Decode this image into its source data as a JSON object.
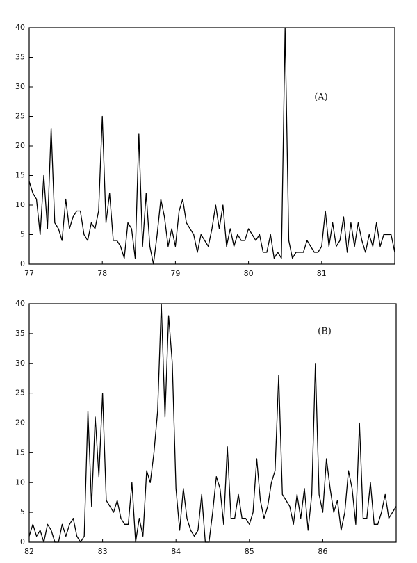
{
  "chart_data": [
    {
      "type": "line",
      "annotation": "(A)",
      "color": "#000000",
      "xlim": [
        77,
        82
      ],
      "xticks": [
        77,
        78,
        79,
        80,
        81
      ],
      "ylim": [
        0,
        40
      ],
      "yticks": [
        0,
        5,
        10,
        15,
        20,
        25,
        30,
        35,
        40
      ],
      "x": [
        77.0,
        77.05,
        77.1,
        77.15,
        77.2,
        77.25,
        77.3,
        77.35,
        77.4,
        77.45,
        77.5,
        77.55,
        77.6,
        77.65,
        77.7,
        77.75,
        77.8,
        77.85,
        77.9,
        77.95,
        78.0,
        78.05,
        78.1,
        78.15,
        78.2,
        78.25,
        78.3,
        78.35,
        78.4,
        78.45,
        78.5,
        78.55,
        78.6,
        78.65,
        78.7,
        78.75,
        78.8,
        78.85,
        78.9,
        78.95,
        79.0,
        79.05,
        79.1,
        79.15,
        79.2,
        79.25,
        79.3,
        79.35,
        79.4,
        79.45,
        79.5,
        79.55,
        79.6,
        79.65,
        79.7,
        79.75,
        79.8,
        79.85,
        79.9,
        79.95,
        80.0,
        80.05,
        80.1,
        80.15,
        80.2,
        80.25,
        80.3,
        80.35,
        80.4,
        80.45,
        80.5,
        80.55,
        80.6,
        80.65,
        80.7,
        80.75,
        80.8,
        80.85,
        80.9,
        80.95,
        81.0,
        81.05,
        81.1,
        81.15,
        81.2,
        81.25,
        81.3,
        81.35,
        81.4,
        81.45,
        81.5,
        81.55,
        81.6,
        81.65,
        81.7,
        81.75,
        81.8,
        81.85,
        81.9,
        81.95,
        82.0
      ],
      "values": [
        14,
        12,
        11,
        5,
        15,
        6,
        23,
        7,
        6,
        4,
        11,
        6,
        8,
        9,
        9,
        5,
        4,
        7,
        6,
        9,
        25,
        7,
        12,
        4,
        4,
        3,
        1,
        7,
        6,
        1,
        22,
        3,
        12,
        3,
        0,
        5,
        11,
        8,
        3,
        6,
        3,
        9,
        11,
        7,
        6,
        5,
        2,
        5,
        4,
        3,
        6,
        10,
        6,
        10,
        3,
        6,
        3,
        5,
        4,
        4,
        6,
        5,
        4,
        5,
        2,
        2,
        5,
        1,
        2,
        1,
        40,
        4,
        1,
        2,
        2,
        2,
        4,
        3,
        2,
        2,
        3,
        9,
        3,
        7,
        3,
        4,
        8,
        2,
        7,
        3,
        7,
        4,
        2,
        5,
        3,
        7,
        3,
        5,
        5,
        5,
        2
      ]
    },
    {
      "type": "line",
      "annotation": "(B)",
      "color": "#000000",
      "xlim": [
        82,
        87
      ],
      "xticks": [
        82,
        83,
        84,
        85,
        86
      ],
      "ylim": [
        0,
        40
      ],
      "yticks": [
        0,
        5,
        10,
        15,
        20,
        25,
        30,
        35,
        40
      ],
      "x": [
        82.0,
        82.05,
        82.1,
        82.15,
        82.2,
        82.25,
        82.3,
        82.35,
        82.4,
        82.45,
        82.5,
        82.55,
        82.6,
        82.65,
        82.7,
        82.75,
        82.8,
        82.85,
        82.9,
        82.95,
        83.0,
        83.05,
        83.1,
        83.15,
        83.2,
        83.25,
        83.3,
        83.35,
        83.4,
        83.45,
        83.5,
        83.55,
        83.6,
        83.65,
        83.7,
        83.75,
        83.8,
        83.85,
        83.9,
        83.95,
        84.0,
        84.05,
        84.1,
        84.15,
        84.2,
        84.25,
        84.3,
        84.35,
        84.4,
        84.45,
        84.5,
        84.55,
        84.6,
        84.65,
        84.7,
        84.75,
        84.8,
        84.85,
        84.9,
        84.95,
        85.0,
        85.05,
        85.1,
        85.15,
        85.2,
        85.25,
        85.3,
        85.35,
        85.4,
        85.45,
        85.5,
        85.55,
        85.6,
        85.65,
        85.7,
        85.75,
        85.8,
        85.85,
        85.9,
        85.95,
        86.0,
        86.05,
        86.1,
        86.15,
        86.2,
        86.25,
        86.3,
        86.35,
        86.4,
        86.45,
        86.5,
        86.55,
        86.6,
        86.65,
        86.7,
        86.75,
        86.8,
        86.85,
        86.9,
        86.95,
        87.0
      ],
      "values": [
        1,
        3,
        1,
        2,
        0,
        3,
        2,
        0,
        0,
        3,
        1,
        3,
        4,
        1,
        0,
        1,
        22,
        6,
        21,
        11,
        25,
        7,
        6,
        5,
        7,
        4,
        3,
        3,
        10,
        0,
        4,
        1,
        12,
        10,
        15,
        22,
        40,
        21,
        38,
        30,
        9,
        2,
        9,
        4,
        2,
        1,
        2,
        8,
        0,
        0,
        5,
        11,
        9,
        3,
        16,
        4,
        4,
        8,
        4,
        4,
        3,
        5,
        14,
        7,
        4,
        6,
        10,
        12,
        28,
        8,
        7,
        6,
        3,
        8,
        4,
        9,
        2,
        8,
        30,
        8,
        5,
        14,
        9,
        5,
        7,
        2,
        5,
        12,
        9,
        3,
        20,
        4,
        4,
        10,
        3,
        3,
        5,
        8,
        4,
        5,
        6
      ]
    }
  ]
}
